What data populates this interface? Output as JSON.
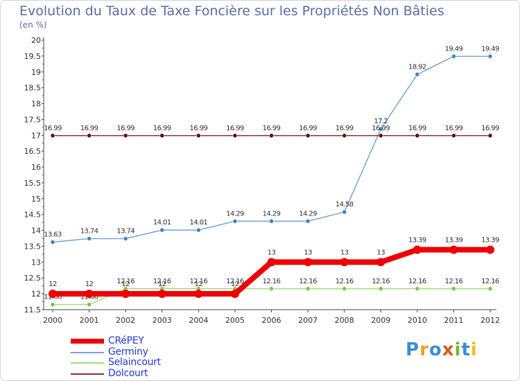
{
  "title": "Evolution du Taux de Taxe Foncière sur les Propriétés Non Bâties",
  "unit_label": "(en %)",
  "logo": {
    "text": "Proxiti",
    "colors": [
      "#3a8fd6",
      "#f0a020",
      "#3a8fd6",
      "#e05a1a",
      "#7ab630",
      "#3a8fd6",
      "#f0c020"
    ]
  },
  "chart_data": {
    "type": "line",
    "title": "Evolution du Taux de Taxe Foncière sur les Propriétés Non Bâties",
    "ylabel": "(en %)",
    "xlabel": "",
    "x": [
      "2000",
      "2001",
      "2002",
      "2003",
      "2004",
      "2005",
      "2006",
      "2007",
      "2008",
      "2009",
      "2010",
      "2011",
      "2012"
    ],
    "ylim": [
      11.5,
      20
    ],
    "ystep": 0.5,
    "yticks": [
      "11.5",
      "12",
      "12.5",
      "13",
      "13.5",
      "14",
      "14.5",
      "15",
      "15.5",
      "16",
      "16.5",
      "17",
      "17.5",
      "18",
      "18.5",
      "19",
      "19.5",
      "20"
    ],
    "grid": false,
    "legend": "bottom-left",
    "series": [
      {
        "name": "Germiny",
        "color": "#7aa7d6",
        "marker": "#3f86c6",
        "values": [
          13.63,
          13.74,
          13.74,
          14.01,
          14.01,
          14.29,
          14.29,
          14.29,
          14.58,
          17.2,
          18.92,
          19.49,
          19.49
        ],
        "labels": [
          "13.63",
          "13.74",
          "13.74",
          "14.01",
          "14.01",
          "14.29",
          "14.29",
          "14.29",
          "14.58",
          "17.2",
          "18.92",
          "19.49",
          "19.49"
        ]
      },
      {
        "name": "Dolcourt",
        "color": "#8a3a3a",
        "marker": "#6b1010",
        "values": [
          16.99,
          16.99,
          16.99,
          16.99,
          16.99,
          16.99,
          16.99,
          16.99,
          16.99,
          16.99,
          16.99,
          16.99,
          16.99
        ],
        "labels": [
          "16.99",
          "16.99",
          "16.99",
          "16.99",
          "16.99",
          "16.99",
          "16.99",
          "16.99",
          "16.99",
          "16.99",
          "16.99",
          "16.99",
          "16.99"
        ]
      },
      {
        "name": "Selaincourt",
        "color": "#a9dc86",
        "marker": "#7ac844",
        "values": [
          11.66,
          11.66,
          12.16,
          12.16,
          12.16,
          12.16,
          12.16,
          12.16,
          12.16,
          12.16,
          12.16,
          12.16,
          12.16
        ],
        "labels": [
          "11.66",
          "11.66",
          "12.16",
          "12.16",
          "12.16",
          "12.16",
          "12.16",
          "12.16",
          "12.16",
          "12.16",
          "12.16",
          "12.16",
          "12.16"
        ]
      },
      {
        "name": "CRéPEY",
        "color": "#ee0000",
        "marker": "#ee0000",
        "values": [
          12,
          12,
          12,
          12,
          12,
          12,
          13,
          13,
          13,
          13,
          13.39,
          13.39,
          13.39
        ],
        "labels": [
          "12",
          "12",
          "12",
          "12",
          "12",
          "12",
          "13",
          "13",
          "13",
          "13",
          "13.39",
          "13.39",
          "13.39"
        ]
      }
    ],
    "legend_entries": [
      {
        "name": "CRéPEY",
        "color": "#ee0000"
      },
      {
        "name": "Germiny",
        "color": "#7aa7d6"
      },
      {
        "name": "Selaincourt",
        "color": "#a9dc86"
      },
      {
        "name": "Dolcourt",
        "color": "#8a3a3a"
      }
    ]
  }
}
